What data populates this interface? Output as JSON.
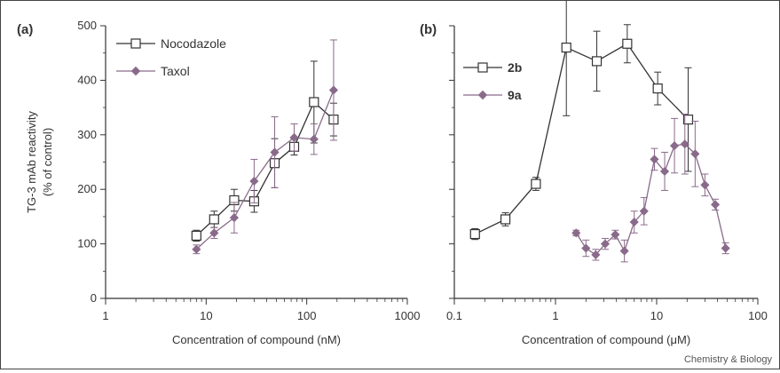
{
  "credit": "Chemistry & Biology",
  "colors": {
    "series_a": "#333333",
    "series_b": "#8a6a8a",
    "axis": "#333333"
  },
  "chart_data": [
    {
      "panel_label": "(a)",
      "type": "line",
      "xscale": "log",
      "xlim": [
        1,
        1000
      ],
      "ylim": [
        0,
        500
      ],
      "xticks": [
        "1",
        "10",
        "100",
        "1000"
      ],
      "yticks": [
        "0",
        "100",
        "200",
        "300",
        "400",
        "500"
      ],
      "xlabel": "Concentration of compound (nM)",
      "ylabel": "TG-3 mAb reactivity",
      "ylabel2": "(% of control)",
      "legend_position": "top-left",
      "series": [
        {
          "name": "Nocodazole",
          "marker": "open-square",
          "points": [
            {
              "x": 8,
              "y": 115,
              "err": 10
            },
            {
              "x": 12,
              "y": 145,
              "err": 15
            },
            {
              "x": 19,
              "y": 180,
              "err": 20
            },
            {
              "x": 30,
              "y": 178,
              "err": 20
            },
            {
              "x": 48,
              "y": 248,
              "err": 45
            },
            {
              "x": 75,
              "y": 278,
              "err": 15
            },
            {
              "x": 118,
              "y": 360,
              "err": 75
            },
            {
              "x": 185,
              "y": 328,
              "err": 30
            }
          ]
        },
        {
          "name": "Taxol",
          "marker": "filled-diamond",
          "points": [
            {
              "x": 8,
              "y": 90,
              "err": 8
            },
            {
              "x": 12,
              "y": 120,
              "err": 10
            },
            {
              "x": 19,
              "y": 148,
              "err": 28
            },
            {
              "x": 30,
              "y": 215,
              "err": 40
            },
            {
              "x": 48,
              "y": 268,
              "err": 65
            },
            {
              "x": 75,
              "y": 295,
              "err": 25
            },
            {
              "x": 118,
              "y": 292,
              "err": 28
            },
            {
              "x": 185,
              "y": 382,
              "err": 92
            }
          ]
        }
      ]
    },
    {
      "panel_label": "(b)",
      "type": "line",
      "xscale": "log",
      "xlim": [
        0.1,
        100
      ],
      "ylim": [
        0,
        500
      ],
      "xticks": [
        "0.1",
        "1",
        "10",
        "100"
      ],
      "xlabel": "Concentration of compound (μM)",
      "legend_position": "top-left",
      "series": [
        {
          "name": "2b",
          "marker": "open-square",
          "points": [
            {
              "x": 0.16,
              "y": 118,
              "err": 10
            },
            {
              "x": 0.32,
              "y": 145,
              "err": 12
            },
            {
              "x": 0.64,
              "y": 210,
              "err": 12
            },
            {
              "x": 1.28,
              "y": 460,
              "err": 125
            },
            {
              "x": 2.56,
              "y": 435,
              "err": 55
            },
            {
              "x": 5.12,
              "y": 467,
              "err": 35
            },
            {
              "x": 10.24,
              "y": 385,
              "err": 30
            },
            {
              "x": 20.48,
              "y": 328,
              "err": 95
            }
          ]
        },
        {
          "name": "9a",
          "marker": "filled-diamond",
          "points": [
            {
              "x": 1.6,
              "y": 120,
              "err": 5
            },
            {
              "x": 2.0,
              "y": 92,
              "err": 15
            },
            {
              "x": 2.5,
              "y": 80,
              "err": 10
            },
            {
              "x": 3.1,
              "y": 100,
              "err": 10
            },
            {
              "x": 3.9,
              "y": 117,
              "err": 8
            },
            {
              "x": 4.8,
              "y": 87,
              "err": 20
            },
            {
              "x": 6.0,
              "y": 140,
              "err": 20
            },
            {
              "x": 7.5,
              "y": 160,
              "err": 25
            },
            {
              "x": 9.5,
              "y": 255,
              "err": 20
            },
            {
              "x": 12.0,
              "y": 233,
              "err": 35
            },
            {
              "x": 15.0,
              "y": 280,
              "err": 50
            },
            {
              "x": 19.0,
              "y": 283,
              "err": 55
            },
            {
              "x": 24.0,
              "y": 265,
              "err": 60
            },
            {
              "x": 30.0,
              "y": 208,
              "err": 20
            },
            {
              "x": 38.0,
              "y": 172,
              "err": 10
            },
            {
              "x": 48.0,
              "y": 92,
              "err": 10
            }
          ]
        }
      ]
    }
  ]
}
